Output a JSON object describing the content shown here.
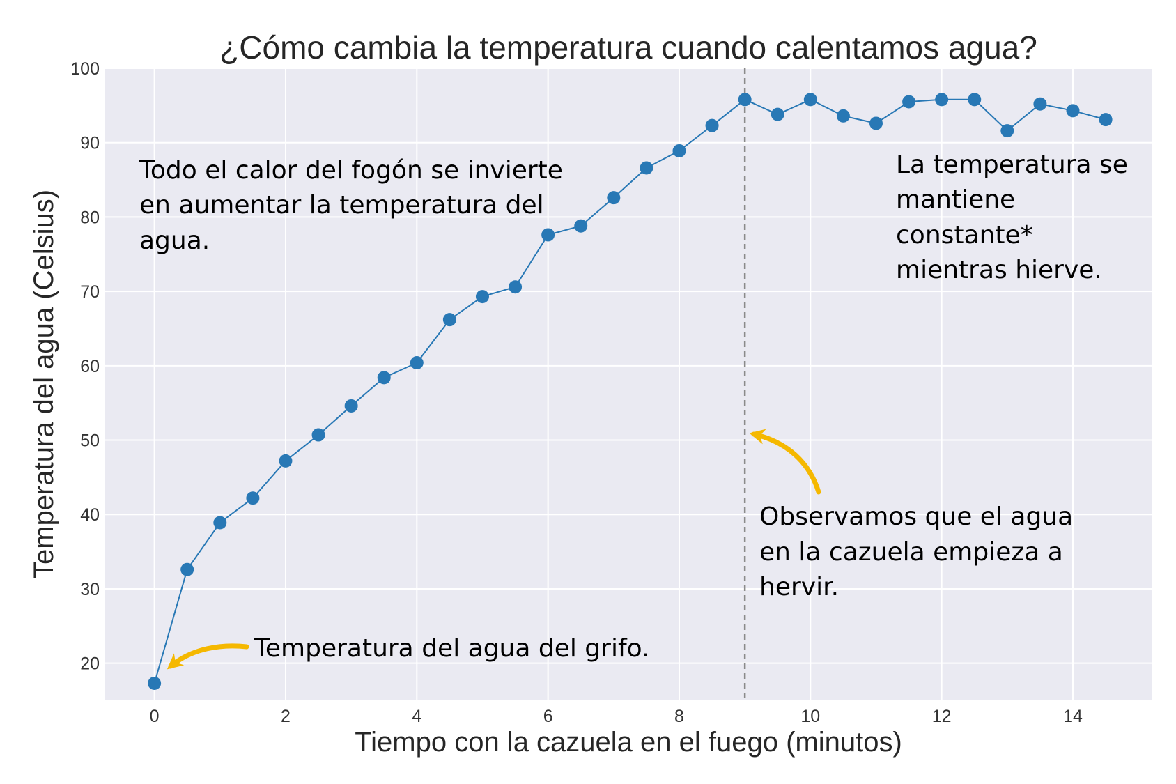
{
  "chart_data": {
    "type": "line",
    "title": "¿Cómo cambia la temperatura cuando calentamos agua?",
    "xlabel": "Tiempo con la cazuela en el fuego (minutos)",
    "ylabel": "Temperatura del agua (Celsius)",
    "xlim": [
      -0.75,
      15.2
    ],
    "ylim": [
      15,
      100
    ],
    "x_ticks": [
      0,
      2,
      4,
      6,
      8,
      10,
      12,
      14
    ],
    "y_ticks": [
      20,
      30,
      40,
      50,
      60,
      70,
      80,
      90,
      100
    ],
    "grid": true,
    "series": [
      {
        "x": [
          0,
          0.5,
          1,
          1.5,
          2,
          2.5,
          3,
          3.5,
          4,
          4.5,
          5,
          5.5,
          6,
          6.5,
          7,
          7.5,
          8,
          8.5,
          9,
          9.5,
          10,
          10.5,
          11,
          11.5,
          12,
          12.5,
          13,
          13.5,
          14,
          14.5
        ],
        "values": [
          17.3,
          32.6,
          38.9,
          42.2,
          47.2,
          50.7,
          54.6,
          58.4,
          60.4,
          66.2,
          69.3,
          70.6,
          77.6,
          78.8,
          82.6,
          86.6,
          88.9,
          92.3,
          95.8,
          93.8,
          95.8,
          93.6,
          92.6,
          95.5,
          95.8,
          95.8,
          91.6,
          95.2,
          94.3,
          93.1
        ],
        "color": "#2878b5"
      }
    ],
    "reference_line": {
      "x": 9,
      "style": "dashed",
      "color": "#8a8a8a"
    },
    "arrow_color": "#f5b800",
    "annotations": [
      {
        "lines": [
          "Todo el calor del fogón se invierte",
          "en aumentar la temperatura del",
          "agua."
        ]
      },
      {
        "lines": [
          "La temperatura se",
          "mantiene",
          "constante*",
          "mientras hierve."
        ]
      },
      {
        "lines": [
          "Observamos que el agua",
          "en la cazuela empieza a",
          "hervir."
        ]
      },
      {
        "lines": [
          "Temperatura del agua del grifo."
        ]
      }
    ]
  }
}
